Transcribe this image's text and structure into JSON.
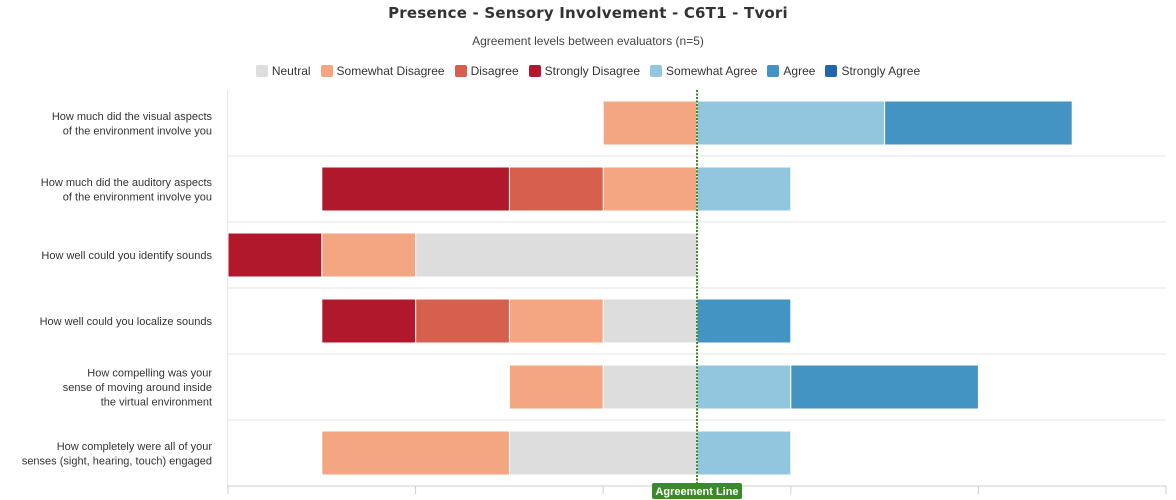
{
  "chart_data": {
    "type": "bar",
    "orientation": "horizontal",
    "stacking": "diverging",
    "title": "Presence - Sensory Involvement - C6T1 - Tvori",
    "subtitle": "Agreement levels between evaluators (n=5)",
    "xlabel": "",
    "ylabel": "",
    "legend_position": "top",
    "grid": true,
    "reference_line": {
      "label": "Agreement Line",
      "value": 0,
      "color": "#3a8a27"
    },
    "xlim": [
      -5,
      5
    ],
    "categories": [
      [
        "How much did the visual aspects",
        "of the environment involve you"
      ],
      [
        "How much did the auditory aspects",
        "of the environment involve you"
      ],
      [
        "How well could you identify sounds"
      ],
      [
        "How well could you localize sounds"
      ],
      [
        "How compelling was your",
        "sense of moving around inside",
        "the virtual environment"
      ],
      [
        "How completely were all of your",
        "senses (sight, hearing, touch) engaged"
      ]
    ],
    "negative_series": [
      {
        "name": "Neutral",
        "color": "#dddddd",
        "values": [
          0,
          0,
          3,
          1,
          1,
          2
        ]
      },
      {
        "name": "Somewhat Disagree",
        "color": "#f4a582",
        "values": [
          1,
          1,
          1,
          1,
          1,
          2
        ]
      },
      {
        "name": "Disagree",
        "color": "#d6604d",
        "values": [
          0,
          1,
          0,
          1,
          0,
          0
        ]
      },
      {
        "name": "Strongly Disagree",
        "color": "#b2182b",
        "values": [
          0,
          2,
          1,
          1,
          0,
          0
        ]
      }
    ],
    "positive_series": [
      {
        "name": "Somewhat Agree",
        "color": "#92c5de",
        "values": [
          2,
          1,
          0,
          0,
          1,
          1
        ]
      },
      {
        "name": "Agree",
        "color": "#4393c3",
        "values": [
          2,
          0,
          0,
          1,
          2,
          0
        ]
      },
      {
        "name": "Strongly Agree",
        "color": "#2166ac",
        "values": [
          0,
          0,
          0,
          0,
          0,
          0
        ]
      }
    ]
  }
}
